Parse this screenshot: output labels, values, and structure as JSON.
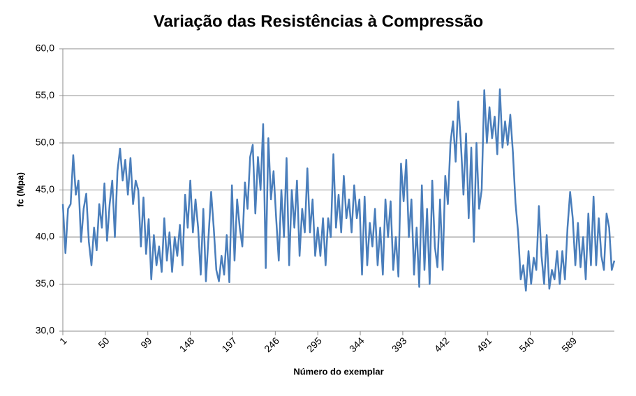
{
  "chart_data": {
    "type": "line",
    "title": "Variação das Resistências à Compressão",
    "x_label": "Número do exemplar",
    "y_label": "fc (Mpa)",
    "color": "#4a7ebb",
    "grid": true,
    "xlim": [
      1,
      637
    ],
    "xticks": [
      1,
      50,
      99,
      148,
      197,
      246,
      295,
      344,
      393,
      442,
      491,
      540,
      589
    ],
    "ylim": [
      30,
      60
    ],
    "yticks": [
      {
        "value": 30,
        "label": "30,0"
      },
      {
        "value": 35,
        "label": "35,0"
      },
      {
        "value": 40,
        "label": "40,0"
      },
      {
        "value": 45,
        "label": "45,0"
      },
      {
        "value": 50,
        "label": "50,0"
      },
      {
        "value": 55,
        "label": "55,0"
      },
      {
        "value": 60,
        "label": "60,0"
      }
    ],
    "x": [
      1,
      4,
      7,
      10,
      13,
      16,
      19,
      22,
      25,
      28,
      31,
      34,
      37,
      40,
      43,
      46,
      49,
      52,
      55,
      58,
      61,
      64,
      67,
      70,
      73,
      76,
      79,
      82,
      85,
      88,
      91,
      94,
      97,
      100,
      103,
      106,
      109,
      112,
      115,
      118,
      121,
      124,
      127,
      130,
      133,
      136,
      139,
      142,
      145,
      148,
      151,
      154,
      157,
      160,
      163,
      166,
      169,
      172,
      175,
      178,
      181,
      184,
      187,
      190,
      193,
      196,
      199,
      202,
      205,
      208,
      211,
      214,
      217,
      220,
      223,
      226,
      229,
      232,
      235,
      238,
      241,
      244,
      247,
      250,
      253,
      256,
      259,
      262,
      265,
      268,
      271,
      274,
      277,
      280,
      283,
      286,
      289,
      292,
      295,
      298,
      301,
      304,
      307,
      310,
      313,
      316,
      319,
      322,
      325,
      328,
      331,
      334,
      337,
      340,
      343,
      346,
      349,
      352,
      355,
      358,
      361,
      364,
      367,
      370,
      373,
      376,
      379,
      382,
      385,
      388,
      391,
      394,
      397,
      400,
      403,
      406,
      409,
      412,
      415,
      418,
      421,
      424,
      427,
      430,
      433,
      436,
      439,
      442,
      445,
      448,
      451,
      454,
      457,
      460,
      463,
      466,
      469,
      472,
      475,
      478,
      481,
      484,
      487,
      490,
      493,
      496,
      499,
      502,
      505,
      508,
      511,
      514,
      517,
      520,
      523,
      526,
      529,
      532,
      535,
      538,
      541,
      544,
      547,
      550,
      553,
      556,
      559,
      562,
      565,
      568,
      571,
      574,
      577,
      580,
      583,
      586,
      589,
      592,
      595,
      598,
      601,
      604,
      607,
      610,
      613,
      616,
      619,
      622,
      625,
      628,
      631,
      634,
      637
    ],
    "values": [
      43.5,
      38.3,
      43,
      43.5,
      48.7,
      44.5,
      46,
      39.5,
      43,
      44.6,
      39.5,
      37,
      41,
      38.6,
      43.5,
      41,
      45.7,
      39.6,
      43.5,
      46,
      40,
      47,
      49.4,
      46,
      48.2,
      44.5,
      48.4,
      43.5,
      46,
      45,
      39,
      44.2,
      38.2,
      41.9,
      35.5,
      40.2,
      37,
      39,
      36.3,
      42,
      37.5,
      40.5,
      36.3,
      40,
      38,
      41.3,
      37,
      44.5,
      41,
      46,
      40.5,
      44,
      41,
      36,
      43,
      35.3,
      40,
      44.8,
      41,
      36.5,
      35.3,
      38,
      36,
      40.2,
      35.2,
      45.5,
      37.5,
      44,
      41,
      39,
      45.8,
      43,
      48.5,
      49.8,
      42.5,
      48.5,
      45,
      52,
      36.7,
      50.5,
      44,
      47,
      42,
      37.5,
      45,
      40,
      48.4,
      37,
      45,
      41,
      46,
      38,
      43,
      40.5,
      47.3,
      40.5,
      44,
      38,
      41,
      38,
      42,
      37,
      42,
      40,
      48.8,
      41,
      44.5,
      40.5,
      46.5,
      42,
      44,
      40.5,
      45.5,
      42,
      44,
      36,
      44.3,
      37,
      41.5,
      39,
      43,
      37,
      41,
      36,
      44,
      40,
      43.8,
      36.5,
      40,
      35.8,
      47.8,
      43.8,
      48.2,
      40,
      44,
      36,
      41,
      34.7,
      45.5,
      36.5,
      43,
      35,
      46,
      39,
      36.8,
      44,
      36.5,
      46.5,
      43.5,
      50,
      52.3,
      48,
      54.4,
      50,
      44.5,
      51,
      42,
      49.5,
      39.5,
      50,
      43,
      45,
      55.6,
      50,
      53.8,
      50.5,
      52.8,
      48.8,
      55.7,
      49.5,
      52.3,
      49.8,
      53,
      49,
      43.6,
      40.5,
      35.5,
      37,
      34.3,
      38.5,
      35,
      37.8,
      36.5,
      43.3,
      38,
      35,
      40.2,
      34.5,
      36.5,
      35.5,
      38.5,
      35,
      38.5,
      35.5,
      41,
      44.8,
      42,
      37,
      41.5,
      36.8,
      40,
      35.5,
      42.5,
      37,
      44.3,
      37,
      42,
      38,
      36.5,
      42.5,
      41,
      36.5,
      37.5
    ]
  }
}
